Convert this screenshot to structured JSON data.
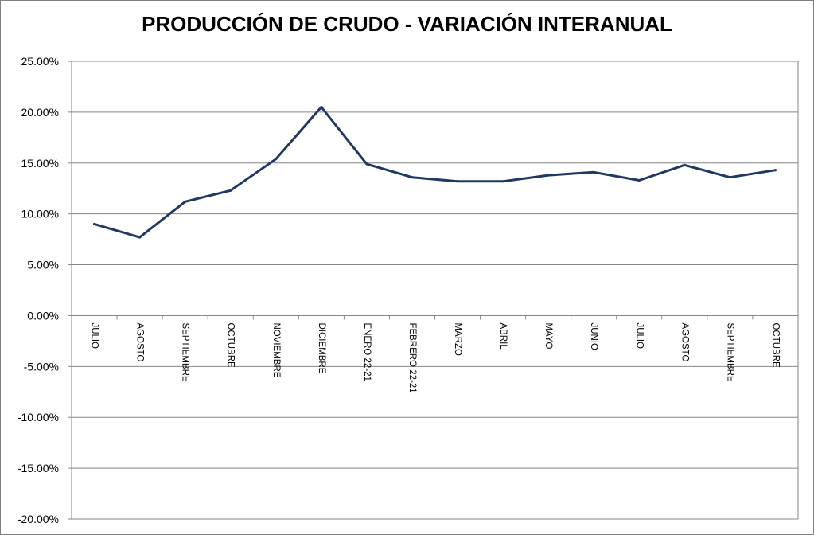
{
  "chart_data": {
    "type": "line",
    "title": "PRODUCCIÓN DE CRUDO - VARIACIÓN INTERANUAL",
    "xlabel": "",
    "ylabel": "",
    "categories": [
      "JULIO",
      "AGOSTO",
      "SEPTIEMBRE",
      "OCTUBRE",
      "NOVIEMBRE",
      "DICIEMBRE",
      "ENERO 22-21",
      "FEBRERO 22-21",
      "MARZO",
      "ABRIL",
      "MAYO",
      "JUNIO",
      "JULIO",
      "AGOSTO",
      "SEPTIEMBRE",
      "OCTUBRE"
    ],
    "series": [
      {
        "values": [
          9.0,
          7.7,
          11.2,
          12.3,
          15.4,
          20.5,
          14.9,
          13.6,
          13.2,
          13.2,
          13.8,
          14.1,
          13.3,
          14.8,
          13.6,
          14.3
        ]
      }
    ],
    "ylim": [
      -20,
      25
    ],
    "ytick_step": 5,
    "ytick_labels": [
      "25.00%",
      "20.00%",
      "15.00%",
      "10.00%",
      "5.00%",
      "0.00%",
      "-5.00%",
      "-10.00%",
      "-15.00%",
      "-20.00%"
    ],
    "grid": true,
    "legend": "none",
    "line_color": "#1f3864",
    "grid_color": "#868686"
  }
}
